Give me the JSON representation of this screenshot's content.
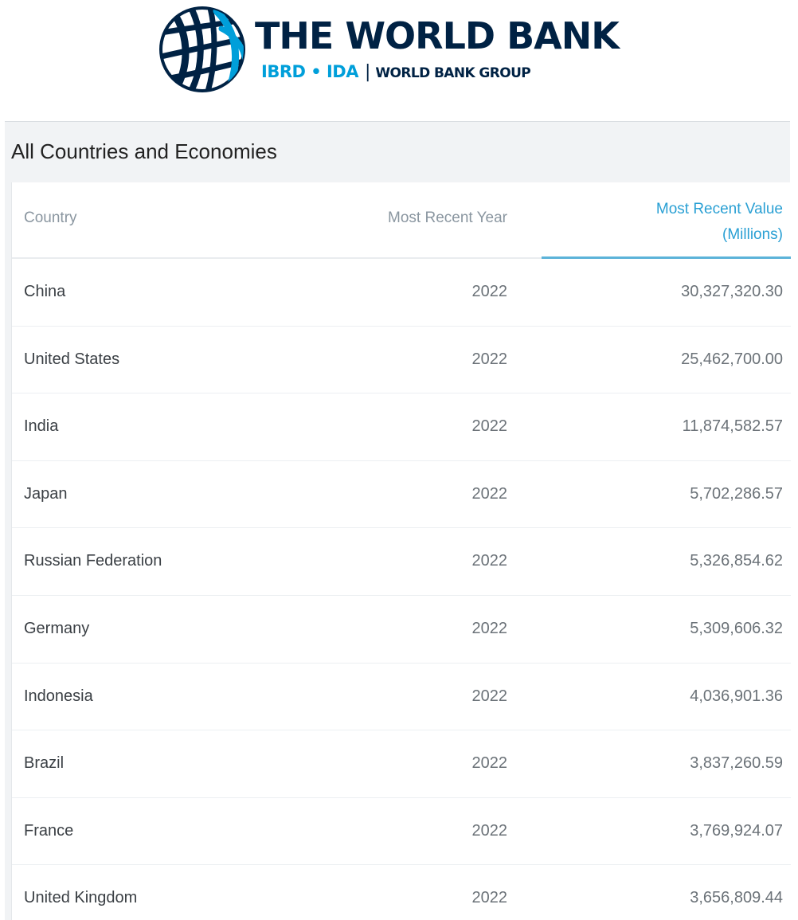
{
  "logo": {
    "title": "THE WORLD BANK",
    "ibrd_ida": "IBRD • IDA",
    "separator": "|",
    "group": "WORLD BANK GROUP",
    "colors": {
      "navy": "#002244",
      "cyan": "#009fda"
    },
    "icon": "globe-icon"
  },
  "panel": {
    "title": "All Countries and Economies"
  },
  "table": {
    "headers": {
      "country": "Country",
      "year": "Most Recent Year",
      "value_line1": "Most Recent Value",
      "value_line2": "(Millions)"
    },
    "sorted_column": "Most Recent Value (Millions)",
    "accent_color": "#2aa0d4",
    "rows": [
      {
        "country": "China",
        "year": "2022",
        "value": "30,327,320.30"
      },
      {
        "country": "United States",
        "year": "2022",
        "value": "25,462,700.00"
      },
      {
        "country": "India",
        "year": "2022",
        "value": "11,874,582.57"
      },
      {
        "country": "Japan",
        "year": "2022",
        "value": "5,702,286.57"
      },
      {
        "country": "Russian Federation",
        "year": "2022",
        "value": "5,326,854.62"
      },
      {
        "country": "Germany",
        "year": "2022",
        "value": "5,309,606.32"
      },
      {
        "country": "Indonesia",
        "year": "2022",
        "value": "4,036,901.36"
      },
      {
        "country": "Brazil",
        "year": "2022",
        "value": "3,837,260.59"
      },
      {
        "country": "France",
        "year": "2022",
        "value": "3,769,924.07"
      },
      {
        "country": "United Kingdom",
        "year": "2022",
        "value": "3,656,809.44"
      }
    ]
  }
}
